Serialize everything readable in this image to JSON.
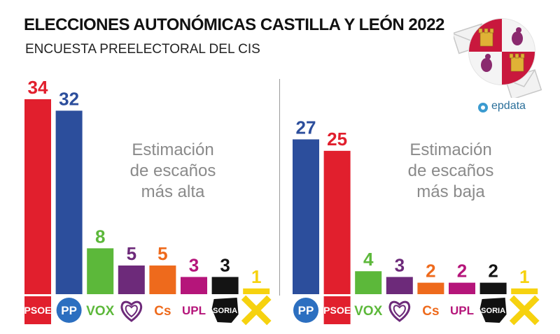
{
  "header": {
    "title": "ELECCIONES AUTONÓMICAS CASTILLA Y LEÓN 2022",
    "subtitle": "ENCUESTA PREELECTORAL DEL CIS"
  },
  "brand": {
    "name": "epdata"
  },
  "chart_data": [
    {
      "type": "bar",
      "annotation": [
        "Estimación",
        "de escaños",
        "más alta"
      ],
      "categories": [
        "PSOE",
        "PP",
        "VOX",
        "Podemos",
        "Cs",
        "UPL",
        "SORIA",
        "Por Ávila"
      ],
      "values": [
        34,
        32,
        8,
        5,
        5,
        3,
        3,
        1
      ],
      "colors": [
        "#e11f2d",
        "#2c4e9c",
        "#5cb83a",
        "#6d2a7a",
        "#ee6a1c",
        "#b5157a",
        "#141414",
        "#f6d20f"
      ],
      "logo_labels": [
        "PSOE",
        "PP",
        "VOX",
        "",
        "Cs",
        "UPL",
        "SORIA",
        ""
      ],
      "logo_icons": [
        "psoe-logo-icon",
        "pp-logo-icon",
        "vox-logo-icon",
        "podemos-heart-icon",
        "cs-logo-icon",
        "upl-logo-icon",
        "soria-logo-icon",
        "por-avila-cross-icon"
      ],
      "ylim": [
        0,
        34
      ]
    },
    {
      "type": "bar",
      "annotation": [
        "Estimación",
        "de escaños",
        "más baja"
      ],
      "categories": [
        "PP",
        "PSOE",
        "VOX",
        "Podemos",
        "Cs",
        "UPL",
        "SORIA",
        "Por Ávila"
      ],
      "values": [
        27,
        25,
        4,
        3,
        2,
        2,
        2,
        1
      ],
      "colors": [
        "#2c4e9c",
        "#e11f2d",
        "#5cb83a",
        "#6d2a7a",
        "#ee6a1c",
        "#b5157a",
        "#141414",
        "#f6d20f"
      ],
      "logo_labels": [
        "PP",
        "PSOE",
        "VOX",
        "",
        "Cs",
        "UPL",
        "SORIA",
        ""
      ],
      "logo_icons": [
        "pp-logo-icon",
        "psoe-logo-icon",
        "vox-logo-icon",
        "podemos-heart-icon",
        "cs-logo-icon",
        "upl-logo-icon",
        "soria-logo-icon",
        "por-avila-cross-icon"
      ],
      "ylim": [
        0,
        34
      ]
    }
  ]
}
